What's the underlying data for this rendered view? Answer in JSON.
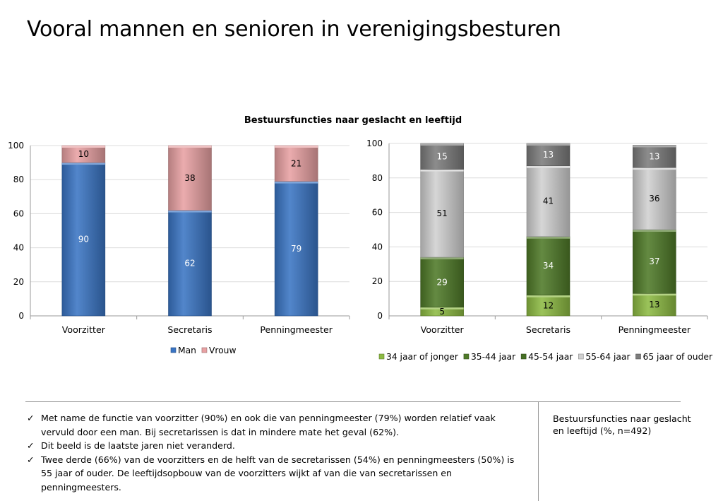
{
  "page": {
    "title": "Vooral mannen en senioren in verenigingsbesturen",
    "chart_heading": "Bestuursfuncties naar geslacht en leeftijd"
  },
  "colors": {
    "man": "#3a75c4",
    "vrouw": "#e8a1a3",
    "age_34_jonger": "#8dbb43",
    "age_35_44": "#4f7a28",
    "age_45_54": "#456f23",
    "age_55_64": "#d0d0d0",
    "age_65_ouder": "#7c7c7c"
  },
  "chart_data": [
    {
      "type": "bar",
      "stacked": true,
      "categories": [
        "Voorzitter",
        "Secretaris",
        "Penningmeester"
      ],
      "series": [
        {
          "name": "Man",
          "values": [
            90,
            62,
            79
          ],
          "color_key": "man",
          "label_color": "#ffffff"
        },
        {
          "name": "Vrouw",
          "values": [
            10,
            38,
            21
          ],
          "color_key": "vrouw",
          "label_color": "#000000"
        }
      ],
      "ylim": [
        0,
        100
      ],
      "yticks": [
        0,
        20,
        40,
        60,
        80,
        100
      ],
      "grid": true,
      "legend": "bottom"
    },
    {
      "type": "bar",
      "stacked": true,
      "categories": [
        "Voorzitter",
        "Secretaris",
        "Penningmeester"
      ],
      "series": [
        {
          "name": "34 jaar of jonger",
          "values": [
            5,
            12,
            13
          ],
          "color_key": "age_34_jonger",
          "label_color": "#000000"
        },
        {
          "name": "35-44 jaar",
          "values": [
            29,
            34,
            37
          ],
          "color_key": "age_35_44",
          "label_color": "#ffffff"
        },
        {
          "name": "45-54 jaar",
          "values": [
            0,
            0,
            0
          ],
          "color_key": "age_45_54",
          "label_color": "#ffffff"
        },
        {
          "name": "55-64 jaar",
          "values": [
            51,
            41,
            36
          ],
          "color_key": "age_55_64",
          "label_color": "#000000"
        },
        {
          "name": "65 jaar of ouder",
          "values": [
            15,
            13,
            13
          ],
          "color_key": "age_65_ouder",
          "label_color": "#ffffff"
        }
      ],
      "ylim": [
        0,
        100
      ],
      "yticks": [
        0,
        20,
        40,
        60,
        80,
        100
      ],
      "grid": true,
      "legend": "bottom"
    }
  ],
  "bullets": [
    "Met name de functie van voorzitter (90%) en ook die van penningmeester (79%) worden relatief vaak vervuld door een man. Bij secretarissen is dat in mindere mate het geval (62%).",
    "Dit beeld is de laatste jaren niet veranderd.",
    "Twee derde (66%) van de voorzitters en de helft van de secretarissen (54%) en penningmeesters (50%) is 55 jaar of ouder. De leeftijdsopbouw van de voorzitters wijkt af van die van secretarissen en penningmeesters."
  ],
  "check_symbol": "✓",
  "side_note": "Bestuursfuncties naar geslacht en leeftijd (%, n=492)"
}
